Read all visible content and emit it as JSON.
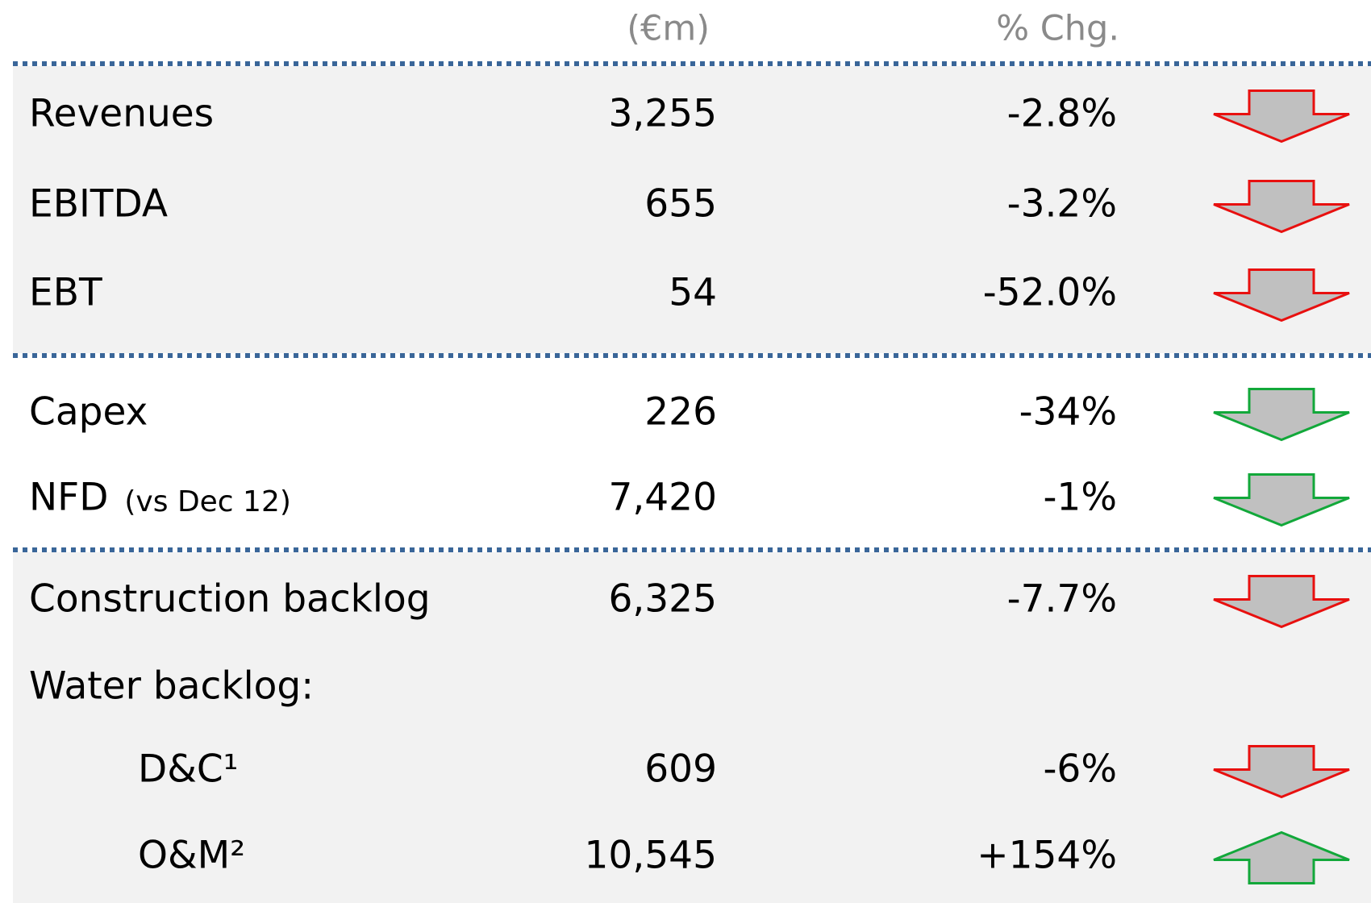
{
  "header": {
    "value_column": "(€m)",
    "change_column": "% Chg."
  },
  "sections": [
    {
      "shaded": true,
      "rows": [
        {
          "label": "Revenues",
          "value": "3,255",
          "change": "-2.8%",
          "arrow": "down",
          "arrow_color": "#e8100f"
        },
        {
          "label": "EBITDA",
          "value": "655",
          "change": "-3.2%",
          "arrow": "down",
          "arrow_color": "#e8100f"
        },
        {
          "label": "EBT",
          "value": "54",
          "change": "-52.0%",
          "arrow": "down",
          "arrow_color": "#e8100f"
        }
      ]
    },
    {
      "shaded": false,
      "rows": [
        {
          "label": "Capex",
          "value": "226",
          "change": "-34%",
          "arrow": "down",
          "arrow_color": "#12a83a"
        },
        {
          "label": "NFD",
          "note": "(vs Dec 12)",
          "value": "7,420",
          "change": "-1%",
          "arrow": "down",
          "arrow_color": "#12a83a"
        }
      ]
    },
    {
      "shaded": true,
      "rows": [
        {
          "label": "Construction backlog",
          "value": "6,325",
          "change": "-7.7%",
          "arrow": "down",
          "arrow_color": "#e8100f"
        },
        {
          "label": "Water backlog:"
        },
        {
          "label": "D&C¹",
          "indent": true,
          "value": "609",
          "change": "-6%",
          "arrow": "down",
          "arrow_color": "#e8100f"
        },
        {
          "label": "O&M²",
          "indent": true,
          "value": "10,545",
          "change": "+154%",
          "arrow": "up",
          "arrow_color": "#12a83a"
        }
      ]
    }
  ]
}
